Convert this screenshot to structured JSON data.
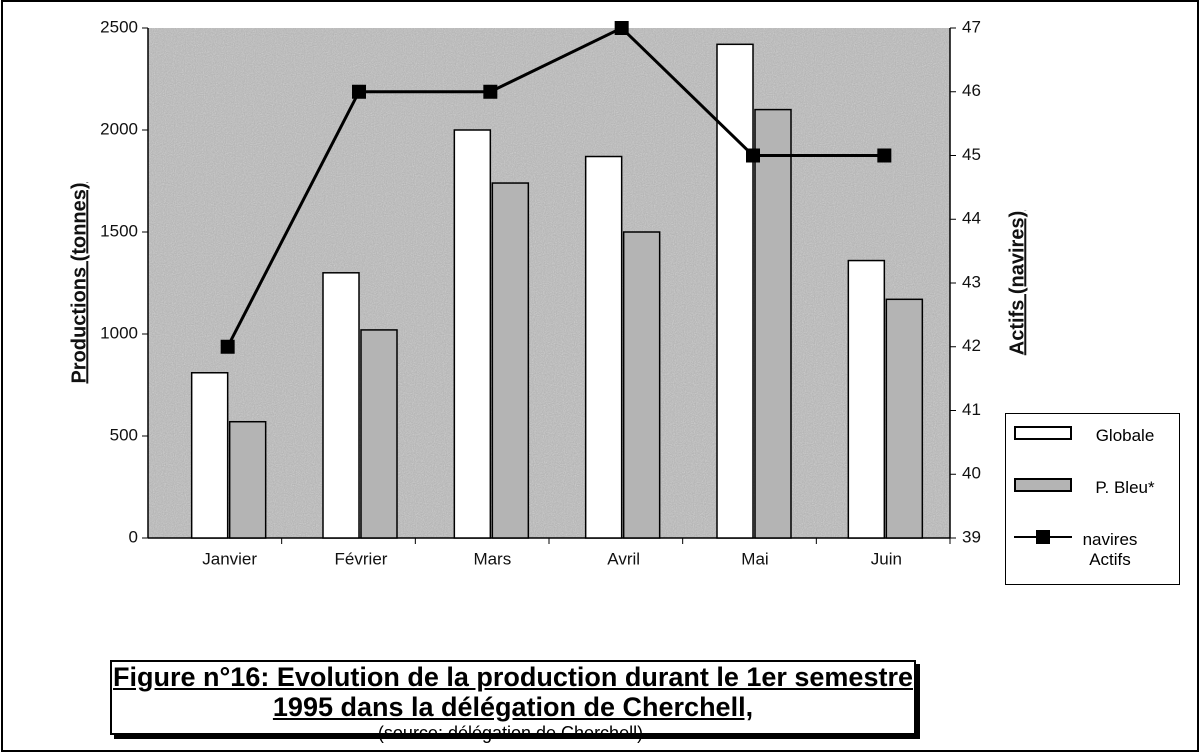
{
  "chart_data": {
    "type": "bar_line",
    "title_lines": [
      "Figure n°16: Evolution de la production durant le 1er semestre",
      "1995 dans la délégation de Cherchell,"
    ],
    "source": "(source: délégation de Cherchell).",
    "y_label": "Productions (tonnes)",
    "y2_label": "Actifs (navires)",
    "categories": [
      "Janvier",
      "Février",
      "Mars",
      "Avril",
      "Mai",
      "Juin"
    ],
    "series": [
      {
        "name": "Globale",
        "type": "bar",
        "color": "#ffffff",
        "values": [
          810,
          1300,
          2000,
          1870,
          2420,
          1360
        ]
      },
      {
        "name": "P. Bleu*",
        "type": "bar",
        "color": "#b4b4b4",
        "values": [
          570,
          1020,
          1740,
          1500,
          2100,
          1170
        ]
      },
      {
        "name": "navires Actifs",
        "type": "line",
        "axis": "y2",
        "color": "#000000",
        "values": [
          42,
          46,
          46,
          47,
          45,
          45
        ]
      }
    ],
    "ylim": [
      0,
      2500
    ],
    "yticks": [
      0,
      500,
      1000,
      1500,
      2000,
      2500
    ],
    "y2lim": [
      39,
      47
    ],
    "y2ticks": [
      39,
      40,
      41,
      42,
      43,
      44,
      45,
      46,
      47
    ],
    "legend": "right"
  }
}
